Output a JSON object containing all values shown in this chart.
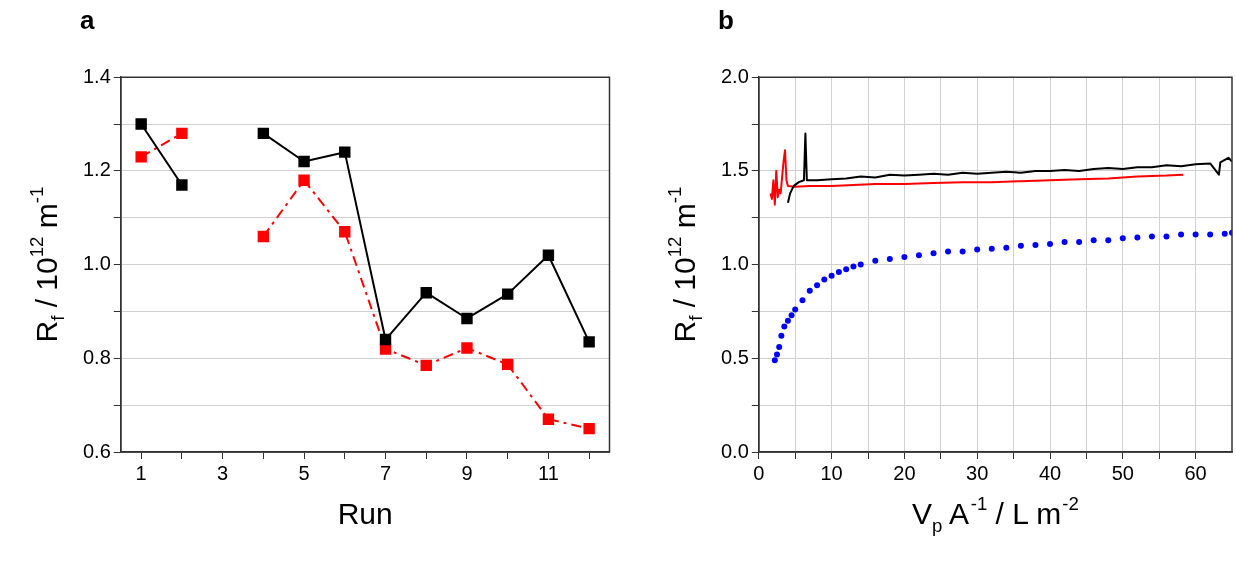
{
  "chart_data": [
    {
      "type": "line",
      "title": "a",
      "xlabel": "Run",
      "ylabel": "R$_{f}$ / 10$^{12}$ m$^{-1}$",
      "x": [
        1,
        2,
        3,
        4,
        5,
        6,
        7,
        8,
        9,
        10,
        11,
        12
      ],
      "series": [
        {
          "color": "#000000",
          "line_style": "solid",
          "values": [
            1.3,
            1.17,
            null,
            1.28,
            1.22,
            1.24,
            0.84,
            0.94,
            0.885,
            0.937,
            1.02,
            0.835
          ]
        },
        {
          "color": "#ff0000",
          "line_style": "dashed",
          "values": [
            1.23,
            1.28,
            null,
            1.06,
            1.18,
            1.07,
            0.82,
            0.785,
            0.822,
            0.787,
            0.67,
            0.65
          ]
        }
      ],
      "marker": "square",
      "xlim": [
        0.5,
        12.5
      ],
      "xticks": [
        1,
        {
          "value": 2,
          "label": null
        },
        3,
        {
          "value": 4,
          "label": null
        },
        5,
        {
          "value": 6,
          "label": null
        },
        7,
        {
          "value": 8,
          "label": null
        },
        9,
        {
          "value": 10,
          "label": null
        },
        11,
        {
          "value": 12,
          "label": null
        }
      ],
      "ylim": [
        0.6,
        1.4
      ],
      "yticks": [
        {
          "value": 0.6,
          "label": "0.6"
        },
        {
          "value": 0.7,
          "label": null
        },
        {
          "value": 0.8,
          "label": "0.8"
        },
        {
          "value": 0.9,
          "label": null
        },
        {
          "value": 1.0,
          "label": "1.0"
        },
        {
          "value": 1.1,
          "label": null
        },
        {
          "value": 1.2,
          "label": "1.2"
        },
        {
          "value": 1.3,
          "label": null
        },
        {
          "value": 1.4,
          "label": "1.4"
        }
      ],
      "grid": "y"
    },
    {
      "type": "line",
      "title": "b",
      "xlabel": "V$_{p}$ A$^{-1}$ / L m$^{-2}$",
      "ylabel": "R$_{f}$ / 10$^{12}$ m$^{-1}$",
      "series": [
        {
          "color": "#000000",
          "line_style": "solid",
          "x": [
            4.0,
            4.3,
            4.8,
            5.5,
            6.2,
            6.4,
            6.6,
            8,
            10,
            12,
            14,
            16,
            18,
            20,
            22,
            24,
            26,
            28,
            30,
            32,
            34,
            36,
            38,
            40,
            42,
            44,
            46,
            48,
            50,
            52,
            54,
            56,
            58,
            60,
            62,
            63.2,
            63.4,
            64.5,
            65
          ],
          "values": [
            1.33,
            1.38,
            1.42,
            1.44,
            1.45,
            1.7,
            1.45,
            1.45,
            1.455,
            1.46,
            1.47,
            1.465,
            1.48,
            1.475,
            1.48,
            1.485,
            1.48,
            1.49,
            1.485,
            1.49,
            1.495,
            1.49,
            1.5,
            1.5,
            1.505,
            1.5,
            1.51,
            1.515,
            1.51,
            1.52,
            1.52,
            1.53,
            1.525,
            1.535,
            1.54,
            1.48,
            1.545,
            1.57,
            1.55
          ]
        },
        {
          "color": "#ff0000",
          "line_style": "solid",
          "x": [
            1.6,
            1.8,
            2.0,
            2.2,
            2.4,
            2.6,
            2.8,
            3.0,
            3.4,
            3.6,
            3.8,
            4.0,
            5,
            7,
            10,
            13,
            16,
            20,
            24,
            28,
            32,
            36,
            40,
            44,
            48,
            52,
            56,
            58.3
          ],
          "values": [
            1.38,
            1.35,
            1.45,
            1.32,
            1.5,
            1.36,
            1.4,
            1.38,
            1.55,
            1.61,
            1.45,
            1.42,
            1.415,
            1.42,
            1.42,
            1.425,
            1.43,
            1.43,
            1.435,
            1.44,
            1.44,
            1.445,
            1.45,
            1.455,
            1.46,
            1.47,
            1.475,
            1.48
          ]
        },
        {
          "type": "scatter",
          "color": "#0000ff",
          "marker": "circle",
          "x": [
            2.2,
            2.5,
            2.8,
            3.1,
            3.5,
            4,
            4.5,
            5,
            6,
            7,
            8,
            9,
            10,
            11,
            12,
            13,
            14,
            16,
            18,
            20,
            22,
            24,
            26,
            28,
            30,
            32,
            34,
            36,
            38,
            40,
            42,
            44,
            46,
            48,
            50,
            52,
            54,
            56,
            58,
            60,
            62,
            64,
            65
          ],
          "values": [
            0.49,
            0.52,
            0.56,
            0.62,
            0.67,
            0.7,
            0.73,
            0.76,
            0.81,
            0.86,
            0.89,
            0.92,
            0.94,
            0.96,
            0.975,
            0.99,
            1.0,
            1.02,
            1.03,
            1.04,
            1.05,
            1.06,
            1.07,
            1.07,
            1.08,
            1.085,
            1.09,
            1.1,
            1.105,
            1.11,
            1.12,
            1.12,
            1.13,
            1.13,
            1.14,
            1.145,
            1.15,
            1.15,
            1.16,
            1.16,
            1.16,
            1.165,
            1.17
          ]
        }
      ],
      "marker": "none",
      "xlim": [
        0,
        65
      ],
      "xticks": [
        0,
        {
          "value": 5,
          "label": null
        },
        10,
        {
          "value": 15,
          "label": null
        },
        20,
        {
          "value": 25,
          "label": null
        },
        30,
        {
          "value": 35,
          "label": null
        },
        40,
        {
          "value": 45,
          "label": null
        },
        50,
        {
          "value": 55,
          "label": null
        },
        60
      ],
      "ylim": [
        0,
        2
      ],
      "yticks": [
        {
          "value": 0,
          "label": "0.0"
        },
        {
          "value": 0.25,
          "label": null
        },
        {
          "value": 0.5,
          "label": "0.5"
        },
        {
          "value": 0.75,
          "label": null
        },
        {
          "value": 1,
          "label": "1.0"
        },
        {
          "value": 1.25,
          "label": null
        },
        {
          "value": 1.5,
          "label": "1.5"
        },
        {
          "value": 1.75,
          "label": null
        },
        {
          "value": 2,
          "label": "2.0"
        }
      ],
      "grid": true
    }
  ]
}
